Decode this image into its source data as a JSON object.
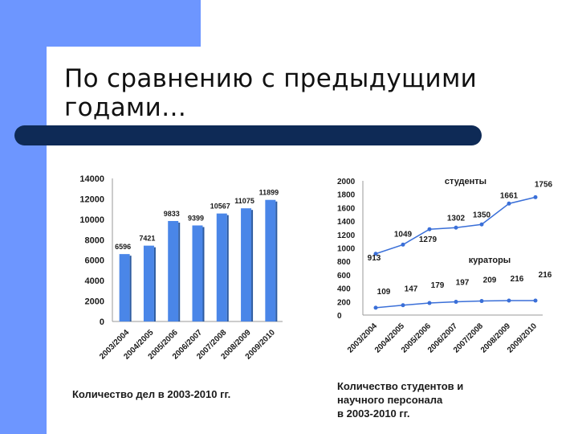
{
  "slide": {
    "title_lines": [
      "По сравнению с предыдущими",
      "годами…"
    ],
    "accent_color": "#6d96ff",
    "bar_color": "#0e2a56"
  },
  "chart_data": [
    {
      "type": "bar",
      "categories": [
        "2003/2004",
        "2004/2005",
        "2005/2006",
        "2006/2007",
        "2007/2008",
        "2008/2009",
        "2009/2010"
      ],
      "series": [
        {
          "values": [
            6596,
            7421,
            9833,
            9399,
            10567,
            11075,
            11899
          ]
        }
      ],
      "data_labels": [
        "6596",
        "7421",
        "9833",
        "9399",
        "10567",
        "11075",
        "11899"
      ],
      "yticks": [
        "0",
        "2000",
        "4000",
        "6000",
        "8000",
        "10000",
        "12000",
        "14000"
      ],
      "ylim": [
        0,
        14000
      ],
      "caption": "Количество дел в 2003-2010 гг.",
      "color": "#4a86e8"
    },
    {
      "type": "line",
      "categories": [
        "2003/2004",
        "2004/2005",
        "2005/2006",
        "2006/2007",
        "2007/2008",
        "2008/2009",
        "2009/2010"
      ],
      "series": [
        {
          "name": "студенты",
          "values": [
            913,
            1049,
            1279,
            1302,
            1350,
            1661,
            1756
          ]
        },
        {
          "name": "кураторы",
          "values": [
            109,
            147,
            179,
            197,
            209,
            216,
            216
          ]
        }
      ],
      "yticks": [
        "0",
        "200",
        "400",
        "600",
        "800",
        "1000",
        "1200",
        "1400",
        "1600",
        "1800",
        "2000"
      ],
      "ylim": [
        0,
        2000
      ],
      "caption_lines": [
        "Количество студентов и",
        "научного персонала",
        "в 2003-2010 гг."
      ],
      "color": "#3a6fd8"
    }
  ]
}
